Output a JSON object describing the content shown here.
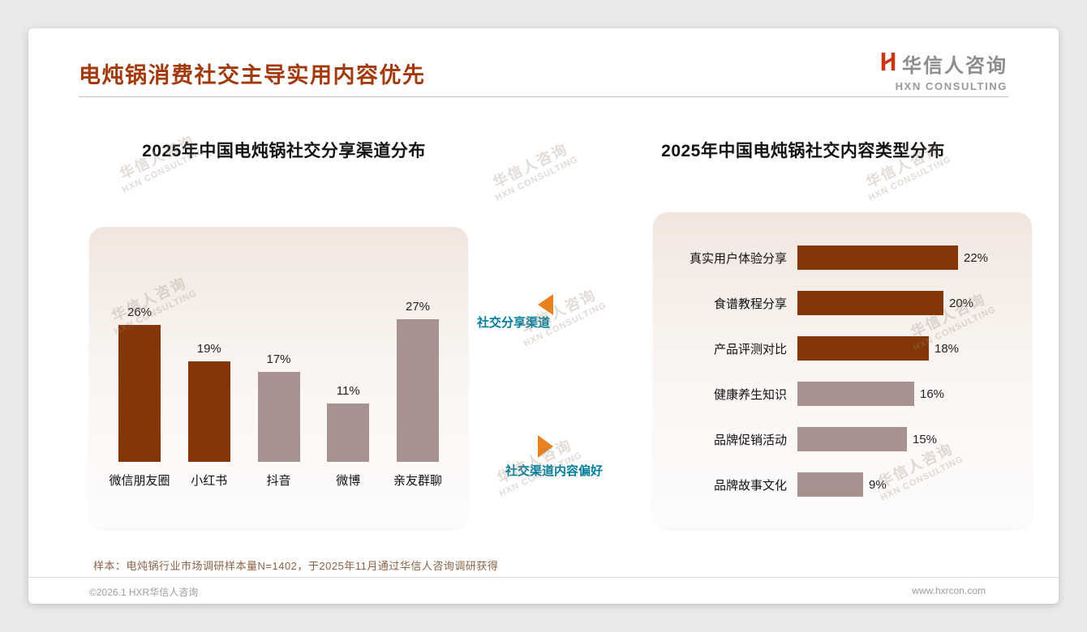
{
  "header": {
    "title": "电炖锅消费社交主导实用内容优先",
    "logo_cn": "华信人咨询",
    "logo_en": "HXN CONSULTING"
  },
  "annotations": {
    "channel_label": "社交分享渠道",
    "content_label": "社交渠道内容偏好"
  },
  "watermark": {
    "line1": "华信人咨询",
    "line2": "HXN CONSULTING"
  },
  "footnote": "样本：电炖锅行业市场调研样本量N=1402，于2025年11月通过华信人咨询调研获得",
  "footer": {
    "left": "©2026.1 HXR华信人咨询",
    "right": "www.hxrcon.com"
  },
  "colors": {
    "title": "#a23a0d",
    "bar_dark": "#833708",
    "bar_light": "#a89290",
    "arrow_orange": "#e8821e",
    "label_teal": "#007d99"
  },
  "chart_data": [
    {
      "type": "bar",
      "title": "2025年中国电炖锅社交分享渠道分布",
      "categories": [
        "微信朋友圈",
        "小红书",
        "抖音",
        "微博",
        "亲友群聊"
      ],
      "values": [
        26,
        19,
        17,
        11,
        27
      ],
      "value_labels": [
        "26%",
        "19%",
        "17%",
        "11%",
        "27%"
      ],
      "bar_colors": [
        "#833708",
        "#833708",
        "#a89290",
        "#a89290",
        "#a89290"
      ],
      "unit": "%",
      "ylim": [
        0,
        30
      ],
      "grid": false,
      "legend": "none"
    },
    {
      "type": "bar-horizontal",
      "title": "2025年中国电炖锅社交内容类型分布",
      "categories": [
        "真实用户体验分享",
        "食谱教程分享",
        "产品评测对比",
        "健康养生知识",
        "品牌促销活动",
        "品牌故事文化"
      ],
      "values": [
        22,
        20,
        18,
        16,
        15,
        9
      ],
      "value_labels": [
        "22%",
        "20%",
        "18%",
        "16%",
        "15%",
        "9%"
      ],
      "bar_colors": [
        "#833708",
        "#833708",
        "#833708",
        "#a89290",
        "#a89290",
        "#a89290"
      ],
      "unit": "%",
      "xlim": [
        0,
        25
      ],
      "grid": false,
      "legend": "none"
    }
  ]
}
